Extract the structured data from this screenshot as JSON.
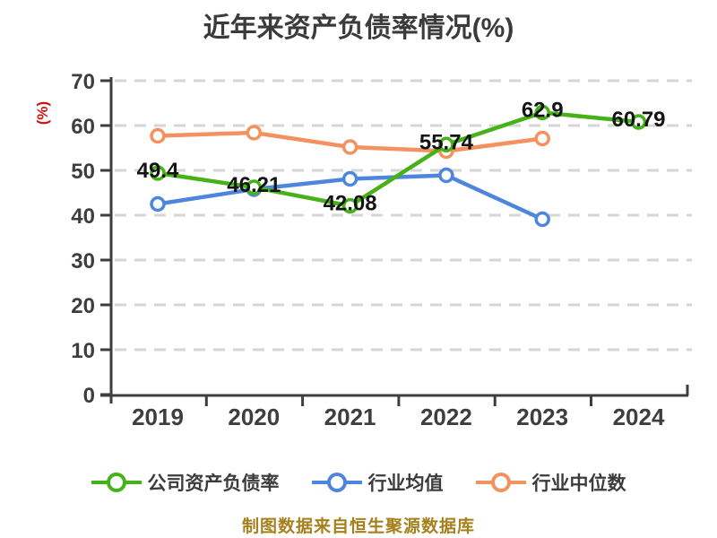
{
  "title": "近年来资产负债率情况(%)",
  "y_axis_label": "(%)",
  "footer": "制图数据来自恒生聚源数据库",
  "colors": {
    "company_green": "#45b318",
    "industry_mean_blue": "#4e86de",
    "industry_median_orange": "#f4915e",
    "grid_gray": "#d6d6d6",
    "axis_dark": "#3e3e3e",
    "data_label_dark": "#141414",
    "y_unit_red": "#d01414",
    "footer_gold": "#a6801c",
    "marker_fill": "#ffffff"
  },
  "chart_data": {
    "type": "line",
    "x": [
      "2019",
      "2020",
      "2021",
      "2022",
      "2023",
      "2024"
    ],
    "title": "近年来资产负债率情况(%)",
    "xlabel": "",
    "ylabel": "(%)",
    "ylim": [
      0,
      70
    ],
    "y_ticks": [
      0,
      10,
      20,
      30,
      40,
      50,
      60,
      70
    ],
    "grid": "horizontal dashed",
    "legend_position": "bottom",
    "series": [
      {
        "name": "公司资产负债率",
        "color": "#45b318",
        "values": [
          49.4,
          46.21,
          42.08,
          55.74,
          62.9,
          60.79
        ],
        "labels": [
          "49.4",
          "46.21",
          "42.08",
          "55.74",
          "62.9",
          "60.79"
        ]
      },
      {
        "name": "行业均值",
        "color": "#4e86de",
        "values": [
          42.5,
          45.8,
          48.1,
          48.9,
          39.1,
          null
        ],
        "labels": null
      },
      {
        "name": "行业中位数",
        "color": "#f4915e",
        "values": [
          57.7,
          58.4,
          55.2,
          54.3,
          57.1,
          null
        ],
        "labels": null
      }
    ]
  }
}
